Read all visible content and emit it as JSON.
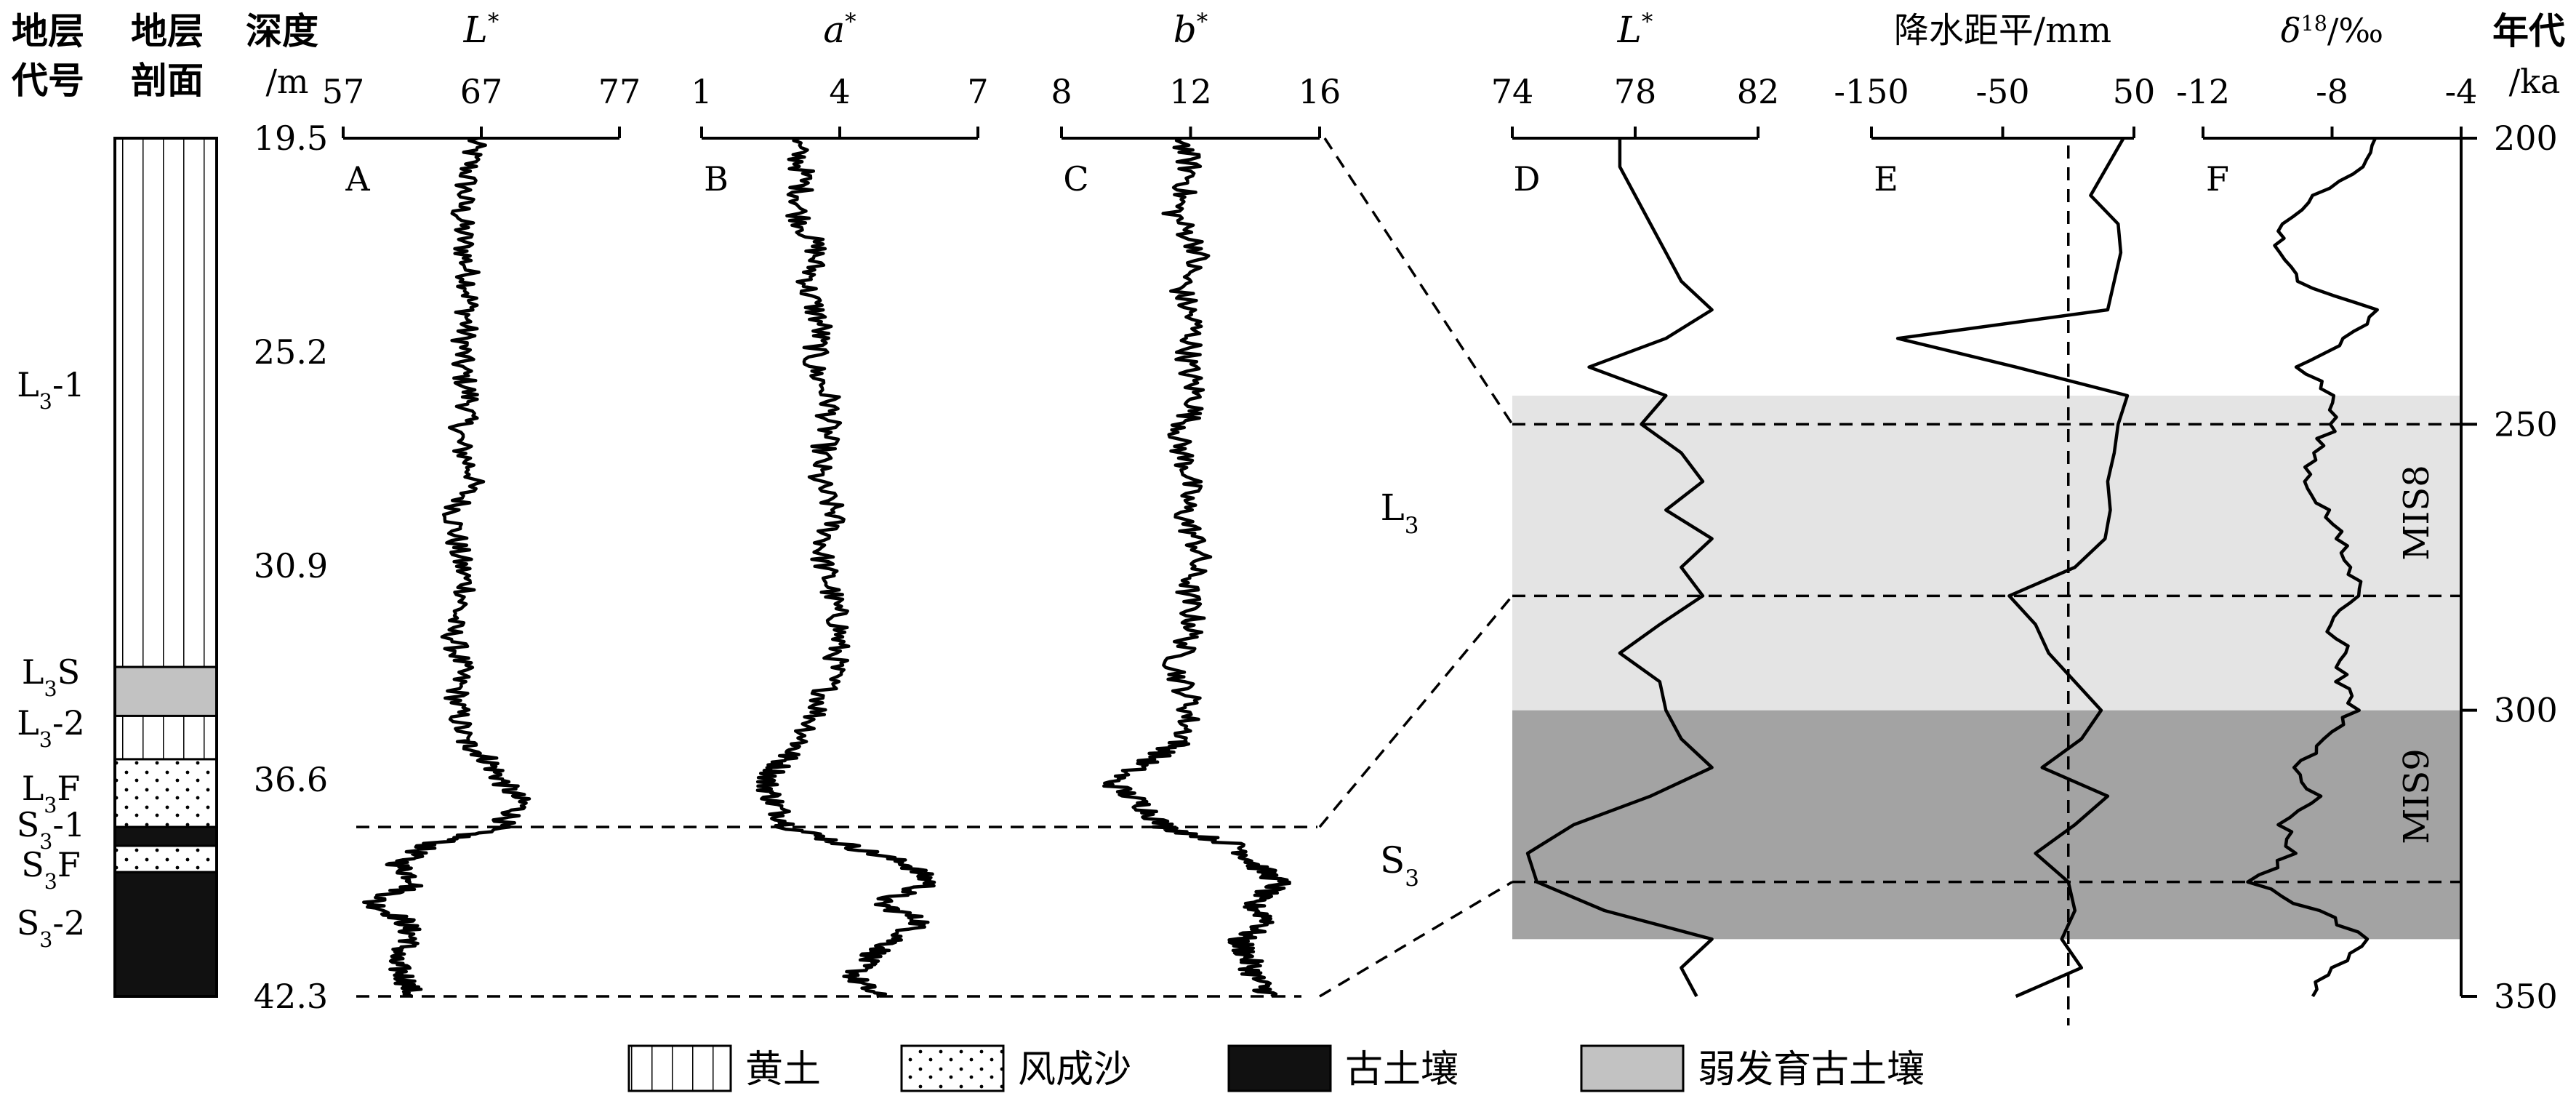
{
  "header": {
    "strat_code": [
      "地层",
      "代号"
    ],
    "strat_section": [
      "地层",
      "剖面"
    ],
    "depth": [
      "深度",
      "/m"
    ],
    "age": [
      "年代",
      "/ka"
    ]
  },
  "panel_letters": [
    "A",
    "B",
    "C",
    "D",
    "E",
    "F"
  ],
  "depth_ticks": [
    "19.5",
    "25.2",
    "30.9",
    "36.6",
    "42.3"
  ],
  "age_ticks": [
    "200",
    "250",
    "300",
    "350"
  ],
  "units": [
    "L3-1",
    "L3S",
    "L3-2",
    "L3F",
    "S3-1",
    "S3F",
    "S3-2"
  ],
  "zones": [
    "L3",
    "S3"
  ],
  "mis": [
    "MIS8",
    "MIS9"
  ],
  "legend": [
    {
      "label": "黄土",
      "pattern": "vertical-lines"
    },
    {
      "label": "风成沙",
      "pattern": "dots"
    },
    {
      "label": "古土壤",
      "pattern": "black"
    },
    {
      "label": "弱发育古土壤",
      "pattern": "gray"
    }
  ],
  "colors": {
    "line": "#000000",
    "soil": "#111111",
    "weak_soil": "#c2c2c2",
    "mis8_band": "#e4e4e4",
    "mis9_band": "#a3a3a3"
  },
  "chart_data": [
    {
      "panel": "A",
      "type": "line",
      "title": "L*",
      "x_ticks": [
        "57",
        "67",
        "77"
      ],
      "xlim": [
        57,
        77
      ],
      "ylabel": "深度 /m",
      "ylim": [
        19.5,
        42.3
      ],
      "depth": [
        19.5,
        20.5,
        21.5,
        22.5,
        23.5,
        24.5,
        25.5,
        26.5,
        27.5,
        28.5,
        29.5,
        30.5,
        31.5,
        32.5,
        33.5,
        34.5,
        35.5,
        36.0,
        36.6,
        37.2,
        37.8,
        38.3,
        38.8,
        39.3,
        39.8,
        40.3,
        40.8,
        41.3,
        41.8,
        42.3
      ],
      "values": [
        66.5,
        66.0,
        65.5,
        65.8,
        66.2,
        65.9,
        65.5,
        66.2,
        65.3,
        66.5,
        65.0,
        65.3,
        66.0,
        64.8,
        65.5,
        65.2,
        65.7,
        67.5,
        68.5,
        70.0,
        68.2,
        63.0,
        61.0,
        62.5,
        59.0,
        61.5,
        62.0,
        60.5,
        61.5,
        62.0
      ]
    },
    {
      "panel": "B",
      "type": "line",
      "title": "a*",
      "x_ticks": [
        "1",
        "4",
        "7"
      ],
      "xlim": [
        1,
        7
      ],
      "ylim": [
        19.5,
        42.3
      ],
      "depth": [
        19.5,
        20.5,
        21.5,
        22.5,
        23.5,
        24.5,
        25.5,
        26.5,
        27.5,
        28.5,
        29.5,
        30.5,
        31.5,
        32.5,
        33.5,
        34.5,
        35.5,
        36.0,
        36.6,
        37.2,
        37.8,
        38.3,
        38.8,
        39.3,
        39.8,
        40.3,
        40.8,
        41.3,
        41.8,
        42.3
      ],
      "values": [
        3.0,
        3.2,
        3.1,
        3.5,
        3.3,
        3.6,
        3.4,
        3.8,
        3.7,
        3.5,
        3.9,
        3.6,
        3.8,
        4.0,
        3.9,
        3.6,
        3.2,
        2.8,
        2.4,
        2.6,
        2.9,
        4.2,
        5.5,
        6.0,
        4.8,
        5.8,
        5.2,
        4.6,
        4.3,
        4.8
      ]
    },
    {
      "panel": "C",
      "type": "line",
      "title": "b*",
      "x_ticks": [
        "8",
        "12",
        "16"
      ],
      "xlim": [
        8,
        16
      ],
      "ylim": [
        19.5,
        42.3
      ],
      "depth": [
        19.5,
        20.5,
        21.5,
        22.5,
        23.5,
        24.5,
        25.5,
        26.5,
        27.5,
        28.5,
        29.5,
        30.5,
        31.5,
        32.5,
        33.5,
        34.5,
        35.5,
        36.0,
        36.6,
        37.2,
        37.8,
        38.3,
        38.8,
        39.3,
        39.8,
        40.3,
        40.8,
        41.3,
        41.8,
        42.3
      ],
      "values": [
        11.8,
        12.0,
        11.5,
        12.3,
        11.7,
        12.1,
        11.9,
        12.2,
        11.6,
        12.0,
        11.8,
        12.3,
        11.9,
        12.1,
        11.5,
        12.0,
        11.8,
        10.8,
        9.5,
        10.5,
        11.2,
        13.5,
        14.0,
        14.8,
        13.8,
        14.5,
        13.5,
        13.8,
        14.0,
        14.5
      ]
    },
    {
      "panel": "D",
      "type": "line",
      "title": "L*",
      "x_ticks": [
        "74",
        "78",
        "82"
      ],
      "xlim": [
        74,
        82
      ],
      "ylabel": "年代 /ka",
      "ylim": [
        200,
        350
      ],
      "age": [
        200,
        205,
        210,
        215,
        220,
        225,
        230,
        235,
        240,
        245,
        250,
        255,
        260,
        265,
        270,
        275,
        280,
        285,
        290,
        295,
        300,
        305,
        310,
        315,
        320,
        325,
        330,
        335,
        340,
        345,
        350
      ],
      "values": [
        77.5,
        77.5,
        78.0,
        78.5,
        79.0,
        79.5,
        80.5,
        79.0,
        76.5,
        79.0,
        78.2,
        79.5,
        80.2,
        79.0,
        80.5,
        79.5,
        80.2,
        78.8,
        77.5,
        78.8,
        79.0,
        79.5,
        80.5,
        78.5,
        76.0,
        74.5,
        74.8,
        77.0,
        80.5,
        79.5,
        80.0
      ]
    },
    {
      "panel": "E",
      "type": "line",
      "title": "降水距平/mm",
      "x_ticks": [
        "-150",
        "-50",
        "50"
      ],
      "xlim": [
        -150,
        50
      ],
      "ylim": [
        200,
        350
      ],
      "reference_line_x": 0,
      "age": [
        200,
        210,
        215,
        220,
        230,
        235,
        240,
        245,
        250,
        255,
        260,
        265,
        270,
        275,
        280,
        285,
        290,
        300,
        305,
        310,
        315,
        320,
        325,
        330,
        335,
        340,
        345,
        350
      ],
      "values": [
        42,
        17,
        38,
        40,
        30,
        -130,
        -40,
        45,
        38,
        35,
        30,
        32,
        28,
        5,
        -45,
        -25,
        -15,
        25,
        10,
        -20,
        30,
        5,
        -25,
        0,
        5,
        -5,
        10,
        -40
      ]
    },
    {
      "panel": "F",
      "type": "line",
      "title": "δ18O/‰",
      "x_ticks": [
        "-12",
        "-8",
        "-4"
      ],
      "xlim": [
        -12,
        -4
      ],
      "ylim": [
        200,
        350
      ],
      "age": [
        200,
        205,
        210,
        215,
        220,
        225,
        230,
        235,
        240,
        245,
        250,
        255,
        260,
        265,
        270,
        275,
        280,
        285,
        290,
        295,
        300,
        305,
        310,
        315,
        320,
        325,
        330,
        335,
        340,
        345,
        350
      ],
      "values": [
        -6.8,
        -7.0,
        -8.5,
        -9.5,
        -9.8,
        -9.0,
        -6.5,
        -7.5,
        -9.0,
        -8.0,
        -8.0,
        -8.5,
        -8.8,
        -8.2,
        -7.8,
        -7.5,
        -7.0,
        -8.2,
        -7.5,
        -7.8,
        -7.3,
        -8.2,
        -9.0,
        -8.5,
        -9.5,
        -9.2,
        -10.5,
        -8.5,
        -6.8,
        -8.0,
        -8.6
      ]
    }
  ]
}
